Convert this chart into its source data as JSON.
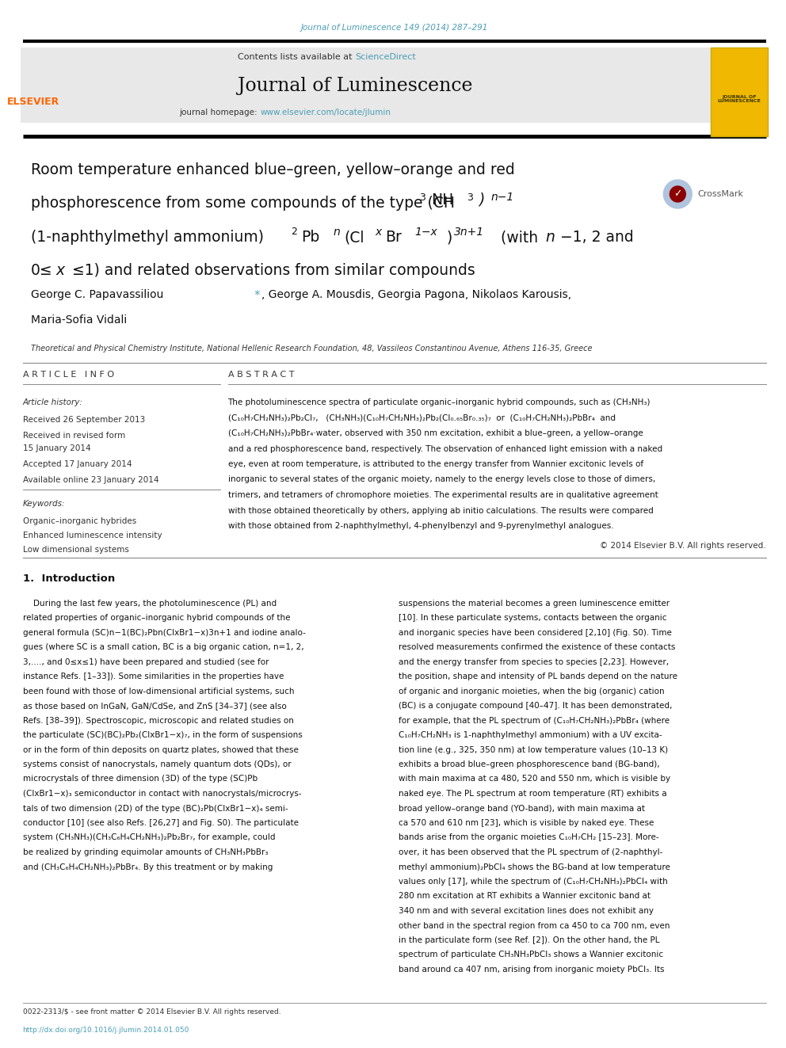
{
  "page_width": 9.92,
  "page_height": 13.23,
  "bg_color": "#ffffff",
  "journal_ref": "Journal of Luminescence 149 (2014) 287–291",
  "journal_ref_color": "#4a9db5",
  "header_bg": "#e8e8e8",
  "contents_text": "Contents lists available at ",
  "sciencedirect_text": "ScienceDirect",
  "sciencedirect_color": "#4a9db5",
  "journal_title": "Journal of Luminescence",
  "journal_homepage_prefix": "journal homepage: ",
  "journal_homepage_url": "www.elsevier.com/locate/jlumin",
  "journal_homepage_color": "#4a9db5",
  "authors": "George C. Papavassiliou *, George A. Mousdis, Georgia Pagona, Nikolaos Karousis,",
  "authors_line2": "Maria-Sofia Vidali",
  "affiliation": "Theoretical and Physical Chemistry Institute, National Hellenic Research Foundation, 48, Vassileos Constantinou Avenue, Athens 116-35, Greece",
  "copyright_text": "© 2014 Elsevier B.V. All rights reserved.",
  "footer_text1": "0022-2313/$ - see front matter © 2014 Elsevier B.V. All rights reserved.",
  "footer_text2": "http://dx.doi.org/10.1016/j.jlumin.2014.01.050",
  "footer_color": "#4a9db5",
  "elsevier_color": "#ff6600",
  "separator_color": "#000000",
  "thin_line_color": "#888888"
}
